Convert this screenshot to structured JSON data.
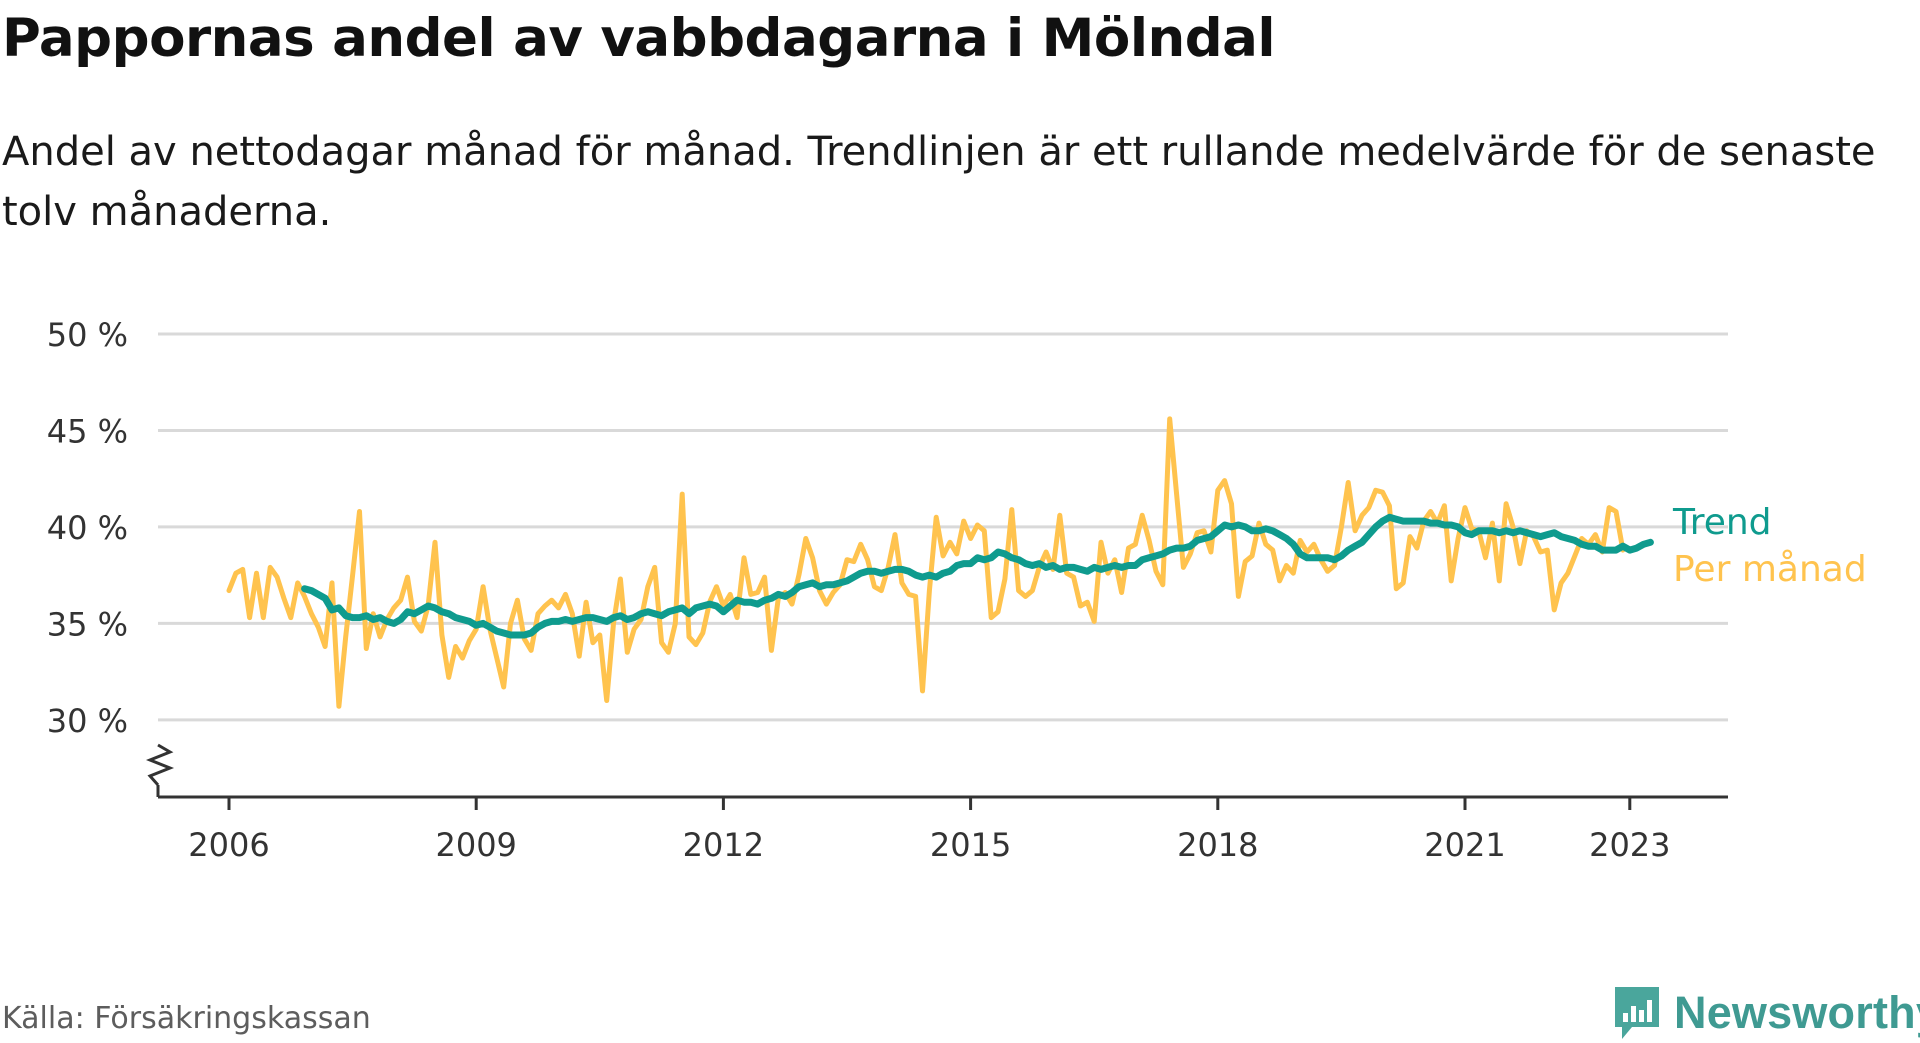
{
  "title": "Pappornas andel av vabbdagarna i Mölndal",
  "subtitle": "Andel av nettodagar månad för månad. Trendlinjen är ett rullande medelvärde för de senaste tolv månaderna.",
  "source": "Källa: Försäkringskassan",
  "brand": "Newsworthy",
  "colors": {
    "trend": "#0f9b8e",
    "monthly": "#ffc34e",
    "grid": "#d9d9d9",
    "axis": "#333333",
    "brand": "#3f9a92"
  },
  "icons": {
    "brand_logo": "newsworthy-bar-chart-logo-icon",
    "axis_break": "axis-break-zigzag-icon"
  },
  "chart_data": {
    "type": "line",
    "x_unit": "year",
    "x_ticks": [
      2006,
      2009,
      2012,
      2015,
      2018,
      2021,
      2023
    ],
    "x_tick_labels": [
      "2006",
      "2009",
      "2012",
      "2015",
      "2018",
      "2021",
      "2023"
    ],
    "y_ticks": [
      30,
      35,
      40,
      45,
      50
    ],
    "y_tick_labels": [
      "30 %",
      "35 %",
      "40 %",
      "45 %",
      "50 %"
    ],
    "ylim": [
      26,
      50
    ],
    "axis_break": true,
    "grid": true,
    "legend": "right, at line ends",
    "series": [
      {
        "name": "Per månad",
        "color": "#ffc34e",
        "start": 2006.0,
        "step": 0.08333,
        "values": [
          36.7,
          37.6,
          37.8,
          35.3,
          37.6,
          35.3,
          37.9,
          37.4,
          36.3,
          35.3,
          37.1,
          36.4,
          35.5,
          34.8,
          33.8,
          37.1,
          30.7,
          34.3,
          37.5,
          40.8,
          33.7,
          35.5,
          34.3,
          35.2,
          35.8,
          36.2,
          37.4,
          35.1,
          34.6,
          35.9,
          39.2,
          34.4,
          32.2,
          33.8,
          33.2,
          34.1,
          34.7,
          36.9,
          34.7,
          33.2,
          31.7,
          35.0,
          36.2,
          34.2,
          33.6,
          35.5,
          35.9,
          36.2,
          35.8,
          36.5,
          35.5,
          33.3,
          36.1,
          34.0,
          34.4,
          31.0,
          35.0,
          37.3,
          33.5,
          34.7,
          35.2,
          36.9,
          37.9,
          34.0,
          33.5,
          35.0,
          41.7,
          34.3,
          33.9,
          34.5,
          36.1,
          36.9,
          35.9,
          36.5,
          35.3,
          38.4,
          36.5,
          36.6,
          37.4,
          33.6,
          36.3,
          36.6,
          36.0,
          37.5,
          39.4,
          38.4,
          36.7,
          36.0,
          36.6,
          37.0,
          38.3,
          38.2,
          39.1,
          38.3,
          36.9,
          36.7,
          37.9,
          39.6,
          37.1,
          36.5,
          36.4,
          31.5,
          36.7,
          40.5,
          38.5,
          39.2,
          38.6,
          40.3,
          39.4,
          40.1,
          39.8,
          35.3,
          35.6,
          37.3,
          40.9,
          36.7,
          36.4,
          36.7,
          37.9,
          38.7,
          37.8,
          40.6,
          37.6,
          37.4,
          35.9,
          36.1,
          35.1,
          39.2,
          37.6,
          38.3,
          36.6,
          38.9,
          39.1,
          40.6,
          39.3,
          37.7,
          37.0,
          45.6,
          41.7,
          37.9,
          38.6,
          39.7,
          39.8,
          38.7,
          41.9,
          42.4,
          41.2,
          36.4,
          38.2,
          38.5,
          40.2,
          39.1,
          38.8,
          37.2,
          38.0,
          37.6,
          39.3,
          38.7,
          39.1,
          38.3,
          37.7,
          38.0,
          40.0,
          42.3,
          39.8,
          40.6,
          41.0,
          41.9,
          41.8,
          41.1,
          36.8,
          37.1,
          39.5,
          38.9,
          40.3,
          40.8,
          40.2,
          41.1,
          37.2,
          39.4,
          41.0,
          39.9,
          39.8,
          38.4,
          40.2,
          37.2,
          41.2,
          40.0,
          38.1,
          39.8,
          39.5,
          38.7,
          38.8,
          35.7,
          37.1,
          37.6,
          38.5,
          39.4,
          39.1,
          39.6,
          38.7,
          41.0,
          40.8,
          38.8
        ]
      },
      {
        "name": "Trend",
        "color": "#0f9b8e",
        "start": 2006.917,
        "step": 0.08333,
        "values": [
          36.8,
          36.7,
          36.5,
          36.3,
          35.7,
          35.8,
          35.4,
          35.3,
          35.3,
          35.4,
          35.2,
          35.3,
          35.1,
          35.0,
          35.2,
          35.6,
          35.5,
          35.7,
          35.9,
          35.8,
          35.6,
          35.5,
          35.3,
          35.2,
          35.1,
          34.9,
          35.0,
          34.8,
          34.6,
          34.5,
          34.4,
          34.4,
          34.4,
          34.5,
          34.8,
          35.0,
          35.1,
          35.1,
          35.2,
          35.1,
          35.2,
          35.3,
          35.3,
          35.2,
          35.1,
          35.3,
          35.4,
          35.2,
          35.3,
          35.5,
          35.6,
          35.5,
          35.4,
          35.6,
          35.7,
          35.8,
          35.5,
          35.8,
          35.9,
          36.0,
          35.9,
          35.6,
          35.9,
          36.2,
          36.1,
          36.1,
          36.0,
          36.2,
          36.3,
          36.5,
          36.4,
          36.6,
          36.9,
          37.0,
          37.1,
          36.9,
          37.0,
          37.0,
          37.1,
          37.2,
          37.4,
          37.6,
          37.7,
          37.7,
          37.6,
          37.7,
          37.8,
          37.8,
          37.7,
          37.5,
          37.4,
          37.5,
          37.4,
          37.6,
          37.7,
          38.0,
          38.1,
          38.1,
          38.4,
          38.3,
          38.4,
          38.7,
          38.6,
          38.4,
          38.3,
          38.1,
          38.0,
          38.1,
          37.9,
          38.0,
          37.8,
          37.9,
          37.9,
          37.8,
          37.7,
          37.9,
          37.8,
          37.9,
          38.0,
          37.9,
          38.0,
          38.0,
          38.3,
          38.4,
          38.5,
          38.6,
          38.8,
          38.9,
          38.9,
          39.0,
          39.3,
          39.4,
          39.5,
          39.8,
          40.1,
          40.0,
          40.1,
          40.0,
          39.8,
          39.8,
          39.9,
          39.8,
          39.6,
          39.4,
          39.1,
          38.6,
          38.4,
          38.4,
          38.4,
          38.4,
          38.3,
          38.5,
          38.8,
          39.0,
          39.2,
          39.6,
          40.0,
          40.3,
          40.5,
          40.4,
          40.3,
          40.3,
          40.3,
          40.3,
          40.2,
          40.2,
          40.1,
          40.1,
          40.0,
          39.7,
          39.6,
          39.8,
          39.8,
          39.8,
          39.7,
          39.8,
          39.7,
          39.8,
          39.7,
          39.6,
          39.5,
          39.6,
          39.7,
          39.5,
          39.4,
          39.3,
          39.1,
          39.0,
          39.0,
          38.8,
          38.8,
          38.8,
          39.0,
          38.8,
          38.9,
          39.1,
          39.2
        ]
      }
    ]
  }
}
